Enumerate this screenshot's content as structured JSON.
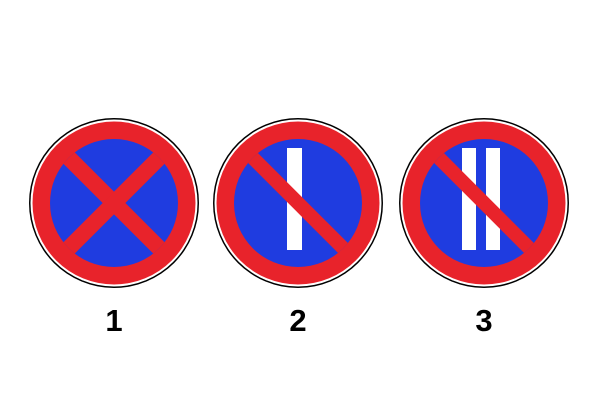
{
  "colors": {
    "background": "#ffffff",
    "sign_red": "#e8232b",
    "sign_blue": "#1f3ce0",
    "stripe_white": "#ffffff",
    "outline": "#000000",
    "label_text": "#000000"
  },
  "signs": [
    {
      "label": "1",
      "icon": "no-stopping-sign-icon",
      "stripes": 0
    },
    {
      "label": "2",
      "icon": "no-parking-odd-days-sign-icon",
      "stripes": 1
    },
    {
      "label": "3",
      "icon": "no-parking-even-days-sign-icon",
      "stripes": 2
    }
  ]
}
